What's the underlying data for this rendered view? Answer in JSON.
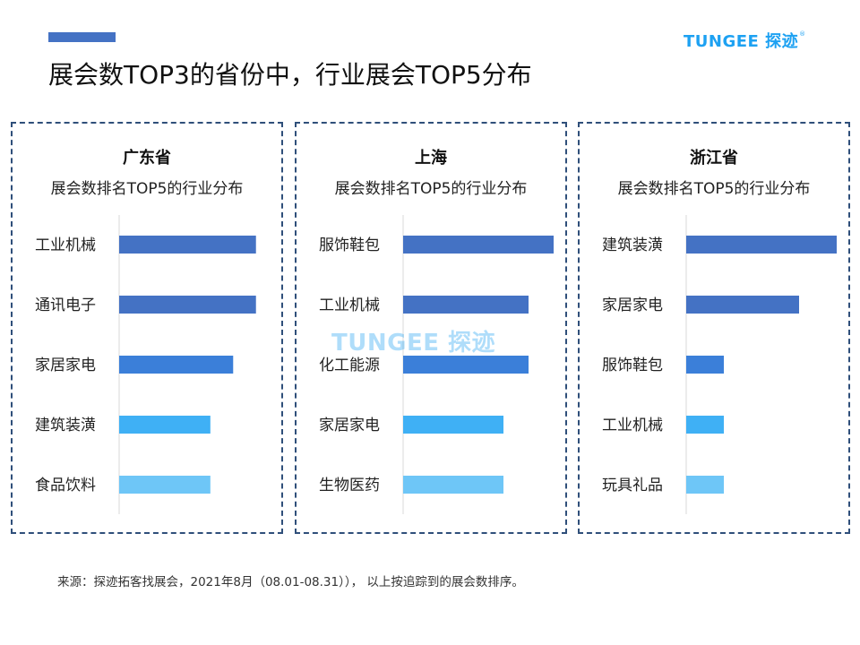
{
  "header": {
    "title": "展会数TOP3的省份中，行业展会TOP5分布",
    "logo_text": "TUNGEE 探迹",
    "logo_mark": "®"
  },
  "footer": {
    "source": "来源：探迹拓客找展会，2021年8月（08.01-08.31））， 以上按追踪到的展会数排序。"
  },
  "colors": {
    "accent": "#4472c4",
    "bar_shades": [
      "#4472c4",
      "#4472c4",
      "#3b7fd9",
      "#3fb0f5",
      "#6ec6f7"
    ],
    "panel_border": "#2f4f7a",
    "logo": "#1da1f2"
  },
  "chart_data": [
    {
      "type": "bar",
      "orientation": "horizontal",
      "title": "广东省",
      "subtitle": "展会数排名TOP5的行业分布",
      "categories": [
        "工业机械",
        "通讯电子",
        "家居家电",
        "建筑装潢",
        "食品饮料"
      ],
      "values": [
        6,
        6,
        5,
        4,
        4
      ],
      "xlim": [
        0,
        6.6
      ],
      "grid": false,
      "legend": "none"
    },
    {
      "type": "bar",
      "orientation": "horizontal",
      "title": "上海",
      "subtitle": "展会数排名TOP5的行业分布",
      "categories": [
        "服饰鞋包",
        "工业机械",
        "化工能源",
        "家居家电",
        "生物医药"
      ],
      "values": [
        6,
        5,
        5,
        4,
        4
      ],
      "xlim": [
        0,
        6
      ],
      "grid": false,
      "legend": "none"
    },
    {
      "type": "bar",
      "orientation": "horizontal",
      "title": "浙江省",
      "subtitle": "展会数排名TOP5的行业分布",
      "categories": [
        "建筑装潢",
        "家居家电",
        "服饰鞋包",
        "工业机械",
        "玩具礼品"
      ],
      "values": [
        4,
        3,
        1,
        1,
        1
      ],
      "xlim": [
        0,
        4
      ],
      "grid": false,
      "legend": "none"
    }
  ]
}
